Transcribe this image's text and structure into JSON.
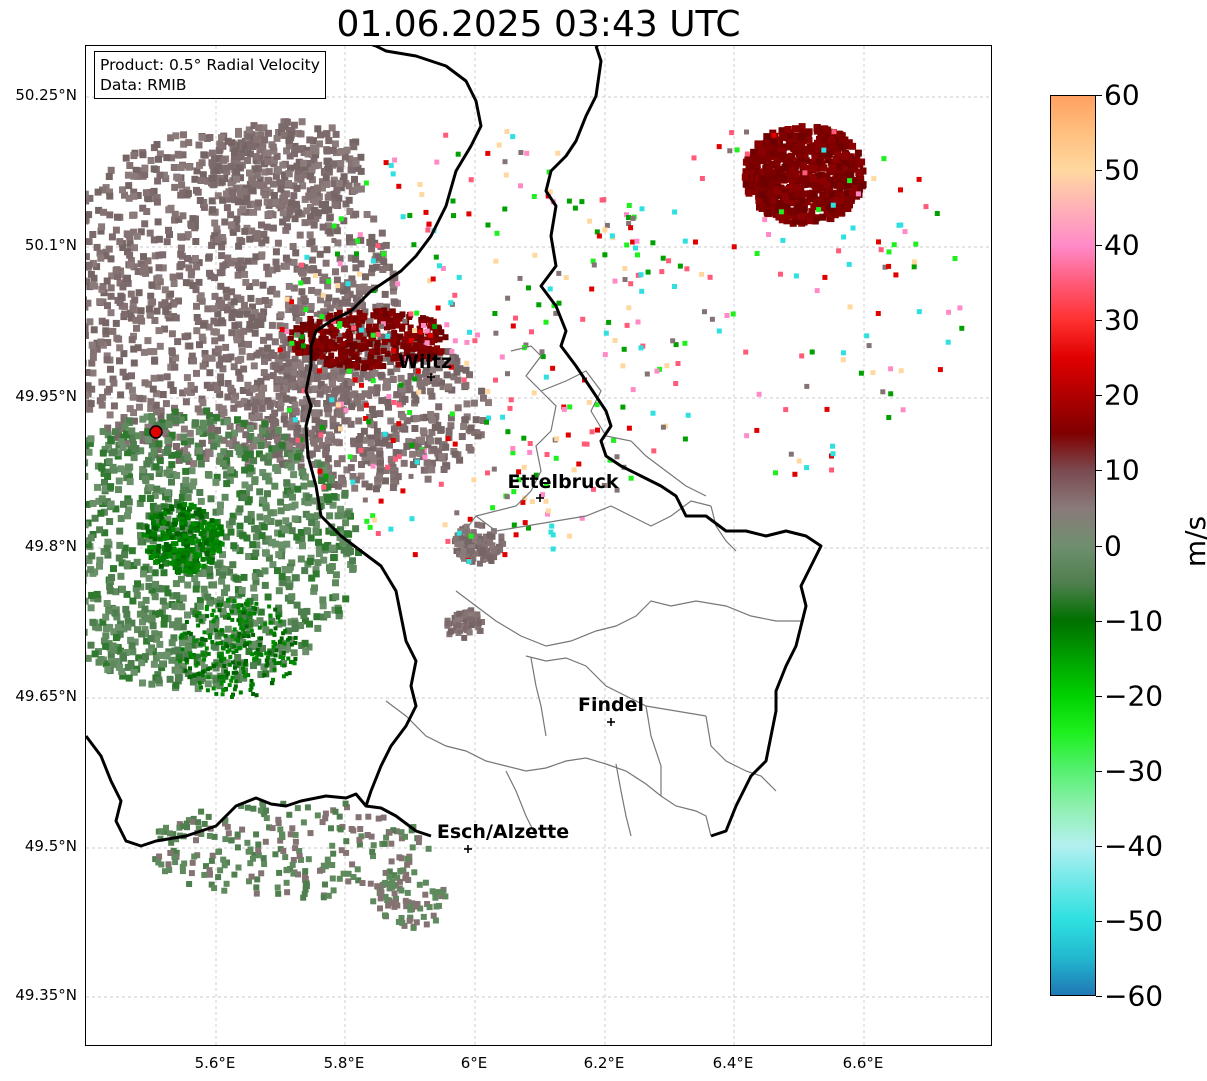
{
  "title": "01.06.2025 03:43 UTC",
  "info": {
    "product_line": "Product: 0.5° Radial Velocity",
    "data_line": "Data: RMIB"
  },
  "axes": {
    "lat_ticks": [
      "50.25°N",
      "50.1°N",
      "49.95°N",
      "49.8°N",
      "49.65°N",
      "49.5°N",
      "49.35°N"
    ],
    "lon_ticks": [
      "5.6°E",
      "5.8°E",
      "6°E",
      "6.2°E",
      "6.4°E",
      "6.6°E"
    ]
  },
  "cities": [
    {
      "name": "Wiltz"
    },
    {
      "name": "Ettelbruck"
    },
    {
      "name": "Findel"
    },
    {
      "name": "Esch/Alzette"
    }
  ],
  "colorbar": {
    "label": "m/s",
    "ticks": [
      "60",
      "50",
      "40",
      "30",
      "20",
      "10",
      "0",
      "−10",
      "−20",
      "−30",
      "−40",
      "−50",
      "−60"
    ],
    "stops": [
      "#1f78b4",
      "#22b8cf",
      "#2ee0e0",
      "#6ee8e8",
      "#b3f0f0",
      "#8ff0b0",
      "#55f070",
      "#1ef01e",
      "#00d000",
      "#00a000",
      "#007000",
      "#4f7f4f",
      "#6f8f6f",
      "#8a7a7a",
      "#7a4a50",
      "#800000",
      "#b00000",
      "#e00000",
      "#ff3030",
      "#ff5a78",
      "#ff8ac8",
      "#ffb0b8",
      "#ffd8a0",
      "#ffc080",
      "#ffa060"
    ]
  },
  "icons": {
    "radar_site": "radar-site-marker-icon",
    "city_marker": "city-marker-icon"
  }
}
